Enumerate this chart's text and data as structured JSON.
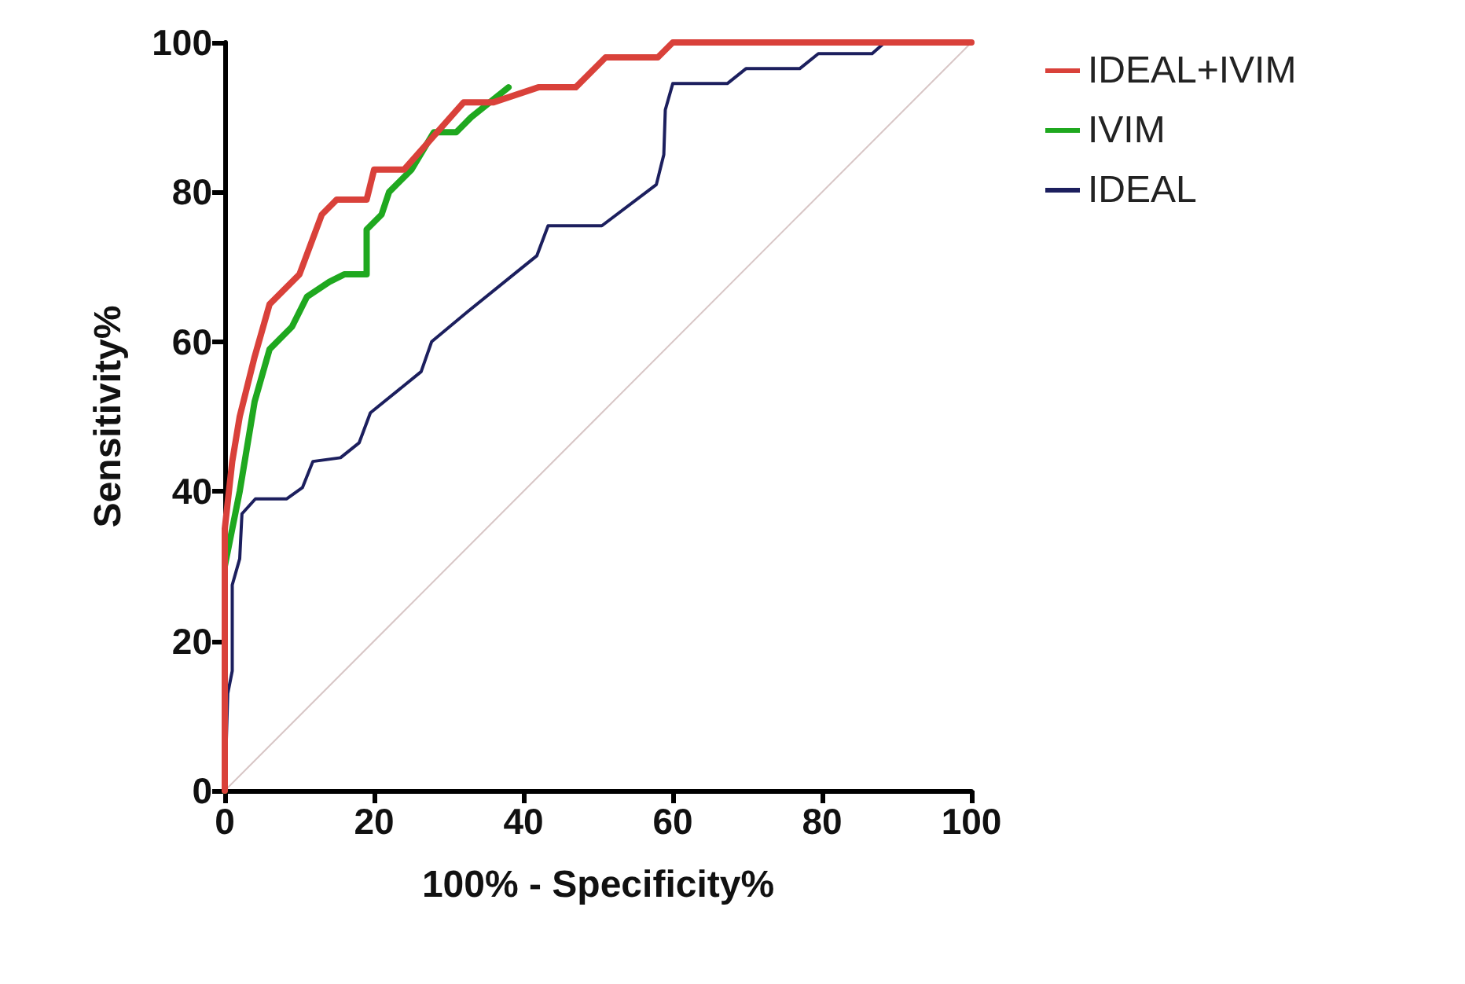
{
  "chart_data": {
    "type": "line",
    "xlabel": "100% - Specificity%",
    "ylabel": "Sensitivity%",
    "xlim": [
      0,
      100
    ],
    "ylim": [
      0,
      100
    ],
    "xticks": [
      0,
      20,
      40,
      60,
      80,
      100
    ],
    "yticks": [
      0,
      20,
      40,
      60,
      80,
      100
    ],
    "grid": false,
    "legend": "top right",
    "marker": "none",
    "line_style": "solid",
    "series": [
      {
        "name": "IDEAL+IVIM",
        "color": "#d9413a",
        "x": [
          0,
          0,
          1,
          2,
          4,
          6,
          10,
          13,
          15,
          19,
          20,
          24,
          32,
          36,
          42,
          47,
          51,
          58,
          60,
          100
        ],
        "values": [
          0,
          35,
          44,
          50,
          58,
          65,
          69,
          77,
          79,
          79,
          83,
          83,
          92,
          92,
          94,
          94,
          98,
          98,
          100,
          100
        ]
      },
      {
        "name": "IVIM",
        "color": "#1fa81f",
        "x": [
          0,
          0,
          2,
          4,
          6,
          9,
          11,
          14,
          16,
          19,
          19,
          21,
          22,
          25,
          28,
          31,
          33,
          38
        ],
        "values": [
          0,
          30,
          40,
          52,
          59,
          62,
          66,
          68,
          69,
          69,
          75,
          77,
          80,
          83,
          88,
          88,
          90,
          94
        ]
      },
      {
        "name": "IDEAL",
        "color": "#1c1f5e",
        "x": [
          0,
          0.4,
          1,
          1,
          2,
          2.3,
          4.1,
          8.3,
          10.4,
          11.8,
          15.5,
          18,
          19.5,
          26.3,
          27.7,
          32.5,
          38.7,
          41.8,
          43.3,
          50.5,
          57.8,
          58.8,
          59,
          60,
          67.3,
          69.8,
          77,
          79.5,
          86.7,
          88.4,
          100
        ],
        "values": [
          0,
          13,
          16,
          27.5,
          31,
          37,
          39,
          39,
          40.5,
          44,
          44.5,
          46.5,
          50.5,
          56,
          60,
          64,
          69,
          71.5,
          75.5,
          75.5,
          81,
          85,
          91,
          94.5,
          94.5,
          96.5,
          96.5,
          98.5,
          98.5,
          100,
          100
        ]
      },
      {
        "color": "#d8c6c6",
        "x": [
          0,
          100
        ],
        "values": [
          0,
          100
        ]
      }
    ]
  }
}
